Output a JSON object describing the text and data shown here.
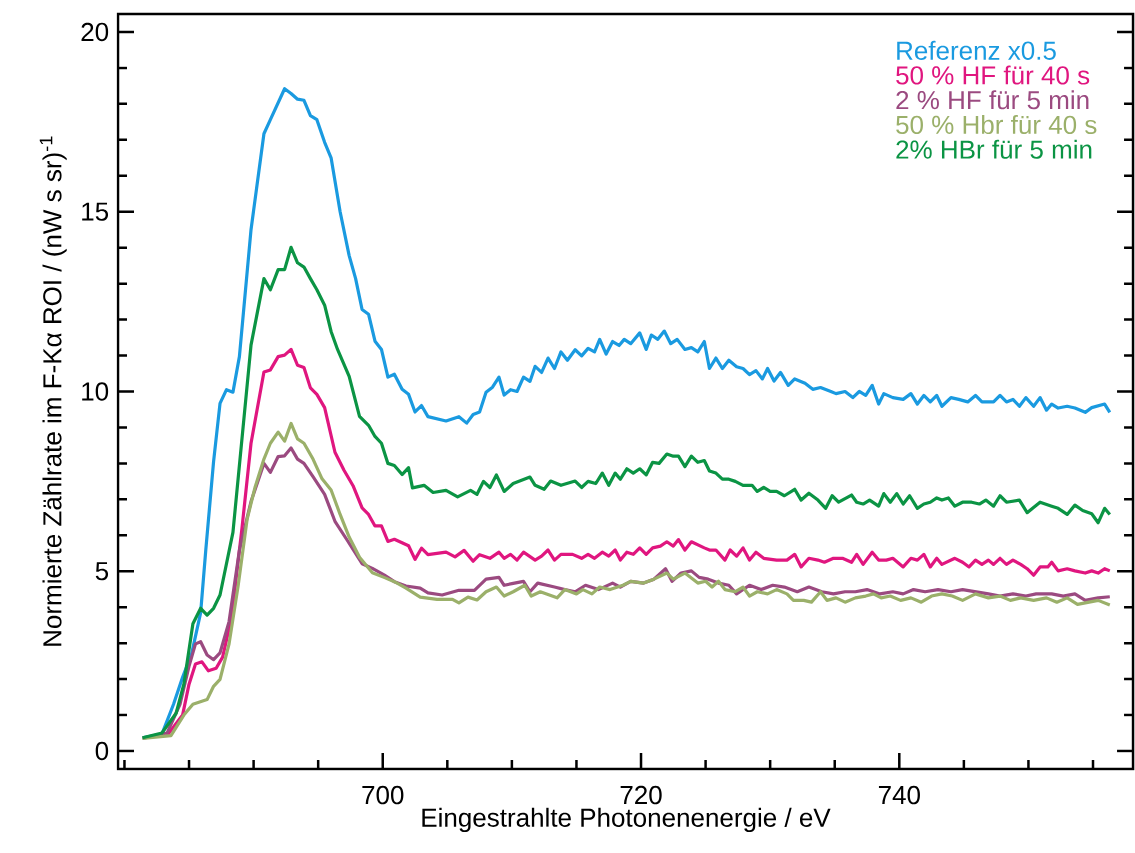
{
  "chart_data": {
    "type": "line",
    "xlabel": "Eingestrahlte Photonenenergie / eV",
    "ylabel": "Normierte Zählrate im F-Kα ROI / (nW s sr)$^{-1}$",
    "xlim": [
      679.5,
      758.1
    ],
    "ylim": [
      -0.5,
      20.5
    ],
    "xticks": [
      {
        "value": 680,
        "label": null
      },
      {
        "value": 685,
        "label": null
      },
      {
        "value": 690,
        "label": null
      },
      {
        "value": 695,
        "label": null
      },
      700,
      {
        "value": 705,
        "label": null
      },
      {
        "value": 710,
        "label": null
      },
      {
        "value": 715,
        "label": null
      },
      720,
      {
        "value": 725,
        "label": null
      },
      {
        "value": 730,
        "label": null
      },
      {
        "value": 735,
        "label": null
      },
      740,
      {
        "value": 745,
        "label": null
      },
      {
        "value": 750,
        "label": null
      },
      {
        "value": 755,
        "label": null
      }
    ],
    "yticks": [
      0,
      {
        "value": 1,
        "label": null
      },
      {
        "value": 2,
        "label": null
      },
      {
        "value": 3,
        "label": null
      },
      {
        "value": 4,
        "label": null
      },
      5,
      {
        "value": 6,
        "label": null
      },
      {
        "value": 7,
        "label": null
      },
      {
        "value": 8,
        "label": null
      },
      {
        "value": 9,
        "label": null
      },
      10,
      {
        "value": 11,
        "label": null
      },
      {
        "value": 12,
        "label": null
      },
      {
        "value": 13,
        "label": null
      },
      {
        "value": 14,
        "label": null
      },
      15,
      {
        "value": 16,
        "label": null
      },
      {
        "value": 17,
        "label": null
      },
      {
        "value": 18,
        "label": null
      },
      {
        "value": 19,
        "label": null
      },
      20
    ],
    "legend": "top right",
    "series": [
      {
        "name": "Referenz  x0.5",
        "color": "#1a9ae0",
        "x": [
          681.4,
          682.9,
          683.8,
          684.5,
          685.2,
          685.9,
          686.3,
          686.9,
          687.4,
          687.9,
          688.4,
          688.9,
          689.8,
          690.8,
          691.3,
          692.4,
          692.9,
          693.4,
          693.9,
          694.4,
          694.9,
          695.5,
          696.0,
          696.7,
          697.4,
          697.9,
          698.4,
          698.9,
          699.4,
          699.9,
          700.4,
          700.9,
          701.5,
          702.0,
          702.5,
          703.0,
          703.5,
          704.9,
          705.9,
          706.5,
          707.0,
          707.5,
          708.0,
          708.5,
          709.0,
          709.4,
          709.9,
          710.4,
          710.9,
          711.4,
          711.8,
          712.3,
          712.8,
          713.3,
          713.8,
          714.3,
          714.9,
          715.4,
          715.9,
          716.4,
          716.8,
          717.3,
          717.8,
          718.3,
          718.7,
          719.2,
          719.9,
          720.4,
          720.8,
          721.3,
          721.8,
          722.3,
          722.8,
          723.4,
          723.9,
          724.4,
          724.9,
          725.3,
          725.8,
          726.3,
          726.8,
          727.4,
          727.9,
          728.4,
          728.9,
          729.4,
          729.8,
          730.3,
          730.8,
          731.4,
          731.9,
          732.7,
          733.3,
          733.9,
          734.7,
          735.1,
          735.8,
          736.4,
          736.9,
          737.4,
          737.9,
          738.4,
          738.8,
          739.5,
          740.3,
          740.9,
          741.4,
          741.9,
          742.4,
          742.9,
          743.3,
          744.0,
          744.6,
          745.3,
          745.9,
          746.4,
          747.3,
          747.8,
          748.3,
          748.8,
          749.3,
          749.8,
          750.4,
          750.9,
          751.4,
          751.8,
          752.3,
          753.0,
          753.6,
          754.4,
          754.9,
          755.9,
          756.3
        ],
        "values": [
          0.37,
          0.47,
          1.3,
          2.05,
          2.7,
          3.85,
          5.6,
          8.05,
          9.67,
          10.05,
          9.98,
          10.97,
          14.5,
          17.17,
          17.56,
          18.42,
          18.29,
          18.13,
          18.1,
          17.67,
          17.56,
          16.93,
          16.5,
          15.0,
          13.78,
          13.14,
          12.28,
          12.15,
          11.4,
          11.17,
          10.4,
          10.48,
          10.06,
          9.92,
          9.43,
          9.61,
          9.3,
          9.18,
          9.3,
          9.12,
          9.36,
          9.43,
          9.98,
          10.12,
          10.4,
          9.9,
          10.05,
          10.0,
          10.4,
          10.28,
          10.7,
          10.53,
          10.93,
          10.64,
          11.1,
          10.87,
          11.16,
          10.99,
          11.2,
          11.1,
          11.45,
          11.04,
          11.39,
          11.28,
          11.45,
          11.33,
          11.63,
          11.17,
          11.57,
          11.45,
          11.68,
          11.33,
          11.45,
          11.17,
          11.22,
          11.1,
          11.39,
          10.64,
          10.93,
          10.64,
          10.87,
          10.69,
          10.64,
          10.47,
          10.58,
          10.35,
          10.64,
          10.29,
          10.53,
          10.17,
          10.35,
          10.23,
          10.06,
          10.11,
          10.0,
          9.94,
          10.0,
          9.83,
          10.0,
          9.89,
          10.17,
          9.65,
          9.94,
          9.83,
          9.78,
          9.94,
          9.65,
          9.89,
          9.71,
          9.89,
          9.59,
          9.83,
          9.78,
          9.71,
          9.89,
          9.71,
          9.71,
          9.89,
          9.71,
          9.78,
          9.59,
          9.83,
          9.59,
          9.83,
          9.48,
          9.65,
          9.54,
          9.59,
          9.54,
          9.42,
          9.55,
          9.65,
          9.42
        ]
      },
      {
        "name": "50 % HF für 40 s",
        "color": "#e0167f",
        "x": [
          683.3,
          684.5,
          685.0,
          685.5,
          686.0,
          686.5,
          687.1,
          687.6,
          688.3,
          689.1,
          689.8,
          690.8,
          691.3,
          691.9,
          692.4,
          692.9,
          693.4,
          693.9,
          694.4,
          694.9,
          695.5,
          696.3,
          697.0,
          697.7,
          698.4,
          698.9,
          699.4,
          699.9,
          700.4,
          700.9,
          702.0,
          702.5,
          703.0,
          703.5,
          704.9,
          705.6,
          706.3,
          707.0,
          707.5,
          708.3,
          709.0,
          709.4,
          709.9,
          710.4,
          710.9,
          711.8,
          712.3,
          712.8,
          713.3,
          713.8,
          714.7,
          715.4,
          715.9,
          716.4,
          717.0,
          717.5,
          718.0,
          718.4,
          718.9,
          719.4,
          719.9,
          720.4,
          720.9,
          721.5,
          722.0,
          722.5,
          722.9,
          723.4,
          723.9,
          724.9,
          725.3,
          725.8,
          726.5,
          726.9,
          727.4,
          727.9,
          728.4,
          728.9,
          729.5,
          730.5,
          731.3,
          731.9,
          732.4,
          733.0,
          733.7,
          734.2,
          734.9,
          735.6,
          736.3,
          736.7,
          737.2,
          737.9,
          738.4,
          739.0,
          739.5,
          740.3,
          740.9,
          741.4,
          741.9,
          742.4,
          742.9,
          743.3,
          744.3,
          744.9,
          745.4,
          745.9,
          746.4,
          746.9,
          747.3,
          747.8,
          748.3,
          748.8,
          749.4,
          749.9,
          750.4,
          750.9,
          751.5,
          751.8,
          752.3,
          753.0,
          753.6,
          754.4,
          754.9,
          755.4,
          755.9,
          756.3
        ],
        "values": [
          0.43,
          1.0,
          1.86,
          2.42,
          2.48,
          2.23,
          2.3,
          2.61,
          3.72,
          6.2,
          8.56,
          10.54,
          10.6,
          10.97,
          11.01,
          11.17,
          10.73,
          10.67,
          10.1,
          9.92,
          9.55,
          8.31,
          7.81,
          7.38,
          6.76,
          6.58,
          6.26,
          6.26,
          5.83,
          5.89,
          5.71,
          5.33,
          5.64,
          5.46,
          5.53,
          5.4,
          5.58,
          5.28,
          5.46,
          5.36,
          5.53,
          5.36,
          5.47,
          5.31,
          5.53,
          5.31,
          5.42,
          5.59,
          5.31,
          5.47,
          5.47,
          5.36,
          5.47,
          5.36,
          5.53,
          5.42,
          5.59,
          5.31,
          5.53,
          5.47,
          5.65,
          5.47,
          5.65,
          5.7,
          5.82,
          5.7,
          5.88,
          5.59,
          5.82,
          5.65,
          5.59,
          5.59,
          5.31,
          5.59,
          5.42,
          5.65,
          5.31,
          5.53,
          5.36,
          5.31,
          5.31,
          5.47,
          5.12,
          5.36,
          5.31,
          5.25,
          5.36,
          5.36,
          5.25,
          5.47,
          5.19,
          5.53,
          5.31,
          5.31,
          5.36,
          5.12,
          5.36,
          5.31,
          5.47,
          5.12,
          5.36,
          5.19,
          5.36,
          5.25,
          5.12,
          5.31,
          5.19,
          5.31,
          5.19,
          5.36,
          5.19,
          5.31,
          5.19,
          5.07,
          4.89,
          5.12,
          5.12,
          5.25,
          5.01,
          5.07,
          5.01,
          4.95,
          5.01,
          4.95,
          5.07,
          5.01
        ]
      },
      {
        "name": "2 % HF für 5 min",
        "color": "#9b4a80",
        "x": [
          681.4,
          683.3,
          684.3,
          685.0,
          685.5,
          685.9,
          686.4,
          686.9,
          687.4,
          688.1,
          688.9,
          689.8,
          690.8,
          691.3,
          691.9,
          692.4,
          692.9,
          693.4,
          693.9,
          694.6,
          695.5,
          696.3,
          697.2,
          698.4,
          699.2,
          700.1,
          700.9,
          701.8,
          702.9,
          703.5,
          704.6,
          705.9,
          707.1,
          708.0,
          709.0,
          709.4,
          710.2,
          710.9,
          711.4,
          712.0,
          713.3,
          714.1,
          714.9,
          715.7,
          716.7,
          717.8,
          718.4,
          719.2,
          720.2,
          721.0,
          721.9,
          722.4,
          723.1,
          723.9,
          724.5,
          725.2,
          726.0,
          726.8,
          727.4,
          728.4,
          729.3,
          730.2,
          731.1,
          732.1,
          733.0,
          734.0,
          734.9,
          735.8,
          736.6,
          737.5,
          738.5,
          739.5,
          740.3,
          741.1,
          742.0,
          743.0,
          744.0,
          744.9,
          745.9,
          746.9,
          747.8,
          748.8,
          749.8,
          750.6,
          751.8,
          752.7,
          753.6,
          754.4,
          755.4,
          756.3
        ],
        "values": [
          0.35,
          0.5,
          1.3,
          2.36,
          2.98,
          3.04,
          2.67,
          2.54,
          2.73,
          3.6,
          5.58,
          6.94,
          8.0,
          7.75,
          8.19,
          8.21,
          8.43,
          8.12,
          8.0,
          7.63,
          7.14,
          6.39,
          5.89,
          5.21,
          5.08,
          4.9,
          4.71,
          4.59,
          4.53,
          4.4,
          4.34,
          4.47,
          4.47,
          4.78,
          4.83,
          4.61,
          4.67,
          4.72,
          4.43,
          4.67,
          4.56,
          4.49,
          4.43,
          4.61,
          4.49,
          4.67,
          4.56,
          4.72,
          4.67,
          4.78,
          5.07,
          4.72,
          4.95,
          5.01,
          4.83,
          4.78,
          4.67,
          4.61,
          4.37,
          4.61,
          4.49,
          4.61,
          4.56,
          4.43,
          4.56,
          4.43,
          4.37,
          4.43,
          4.43,
          4.49,
          4.37,
          4.43,
          4.37,
          4.49,
          4.43,
          4.49,
          4.43,
          4.49,
          4.43,
          4.37,
          4.31,
          4.37,
          4.31,
          4.37,
          4.37,
          4.31,
          4.37,
          4.19,
          4.26,
          4.29
        ]
      },
      {
        "name": "50 % Hbr für 40 s",
        "color": "#9bb06a",
        "x": [
          681.4,
          683.6,
          684.6,
          685.3,
          686.4,
          686.9,
          687.4,
          688.1,
          688.8,
          689.5,
          690.1,
          690.8,
          691.3,
          691.9,
          692.4,
          692.9,
          693.4,
          693.9,
          694.6,
          695.3,
          696.0,
          696.7,
          697.4,
          698.2,
          699.2,
          700.1,
          700.9,
          701.8,
          702.9,
          704.2,
          705.4,
          705.9,
          706.6,
          707.3,
          708.0,
          708.8,
          709.4,
          710.1,
          711.0,
          711.5,
          712.2,
          713.5,
          714.1,
          715.0,
          715.5,
          716.2,
          716.8,
          717.6,
          718.6,
          719.2,
          720.2,
          721.0,
          722.0,
          722.5,
          723.4,
          724.4,
          725.0,
          725.5,
          726.0,
          726.5,
          727.3,
          727.9,
          728.4,
          729.0,
          729.8,
          730.5,
          731.3,
          731.8,
          732.6,
          733.2,
          733.9,
          734.4,
          735.1,
          735.8,
          736.6,
          737.4,
          738.0,
          738.6,
          739.3,
          740.1,
          740.9,
          741.7,
          742.5,
          743.3,
          744.1,
          744.9,
          745.9,
          746.9,
          747.8,
          748.6,
          749.4,
          750.4,
          751.4,
          752.2,
          753.0,
          753.8,
          755.4,
          756.3
        ],
        "values": [
          0.35,
          0.43,
          1.0,
          1.3,
          1.43,
          1.8,
          1.99,
          2.98,
          4.59,
          6.45,
          7.32,
          8.12,
          8.56,
          8.87,
          8.62,
          9.11,
          8.68,
          8.56,
          8.12,
          7.57,
          7.26,
          6.58,
          5.95,
          5.39,
          4.96,
          4.83,
          4.71,
          4.53,
          4.28,
          4.22,
          4.22,
          4.12,
          4.28,
          4.2,
          4.43,
          4.56,
          4.31,
          4.43,
          4.61,
          4.31,
          4.43,
          4.26,
          4.49,
          4.37,
          4.49,
          4.37,
          4.56,
          4.49,
          4.61,
          4.72,
          4.67,
          4.78,
          4.95,
          4.78,
          4.95,
          4.67,
          4.72,
          4.56,
          4.72,
          4.49,
          4.43,
          4.56,
          4.31,
          4.43,
          4.37,
          4.49,
          4.37,
          4.19,
          4.19,
          4.14,
          4.43,
          4.19,
          4.26,
          4.14,
          4.26,
          4.31,
          4.37,
          4.26,
          4.31,
          4.19,
          4.26,
          4.14,
          4.31,
          4.37,
          4.31,
          4.19,
          4.37,
          4.26,
          4.31,
          4.19,
          4.26,
          4.19,
          4.26,
          4.14,
          4.26,
          4.08,
          4.19,
          4.06
        ]
      },
      {
        "name": "2% HBr für 5 min",
        "color": "#0b9444",
        "x": [
          681.4,
          682.9,
          684.0,
          684.6,
          685.3,
          685.9,
          686.4,
          686.9,
          687.4,
          688.4,
          689.8,
          690.8,
          691.3,
          691.9,
          692.4,
          692.9,
          693.4,
          693.9,
          694.4,
          694.9,
          695.5,
          696.0,
          696.5,
          697.4,
          698.2,
          698.9,
          699.4,
          699.9,
          700.4,
          700.9,
          701.5,
          702.0,
          702.3,
          703.2,
          703.9,
          704.9,
          705.8,
          706.8,
          707.3,
          707.8,
          708.3,
          708.8,
          709.4,
          710.1,
          711.4,
          711.8,
          712.5,
          713.0,
          713.8,
          714.9,
          715.4,
          715.9,
          716.5,
          717.0,
          717.5,
          718.0,
          718.4,
          718.9,
          719.4,
          719.9,
          720.4,
          720.9,
          721.4,
          722.0,
          722.5,
          722.9,
          723.4,
          723.9,
          724.4,
          724.9,
          725.3,
          725.8,
          726.3,
          726.8,
          727.3,
          727.9,
          728.6,
          729.0,
          729.5,
          730.0,
          730.5,
          731.1,
          731.9,
          732.4,
          733.0,
          733.7,
          734.3,
          734.8,
          735.3,
          736.3,
          736.7,
          737.2,
          737.7,
          738.4,
          738.8,
          739.3,
          739.8,
          740.3,
          740.8,
          741.4,
          741.9,
          742.4,
          742.9,
          743.3,
          743.8,
          744.3,
          744.9,
          745.6,
          746.2,
          746.7,
          747.3,
          747.8,
          748.3,
          749.3,
          749.9,
          750.9,
          751.8,
          752.3,
          753.0,
          753.6,
          754.2,
          754.9,
          755.4,
          755.9,
          756.3
        ],
        "values": [
          0.37,
          0.5,
          1.05,
          1.86,
          3.54,
          3.97,
          3.78,
          3.97,
          4.34,
          6.08,
          11.29,
          13.14,
          12.83,
          13.39,
          13.39,
          14.01,
          13.58,
          13.46,
          13.14,
          12.83,
          12.4,
          11.67,
          11.17,
          10.42,
          9.31,
          9.06,
          8.75,
          8.56,
          8.0,
          7.94,
          7.69,
          7.88,
          7.32,
          7.39,
          7.19,
          7.25,
          7.07,
          7.25,
          7.14,
          7.5,
          7.33,
          7.68,
          7.22,
          7.44,
          7.62,
          7.39,
          7.28,
          7.51,
          7.39,
          7.51,
          7.33,
          7.5,
          7.44,
          7.73,
          7.39,
          7.73,
          7.56,
          7.85,
          7.73,
          7.85,
          7.68,
          8.03,
          8.0,
          8.26,
          8.2,
          8.2,
          7.91,
          8.2,
          8.03,
          8.08,
          7.79,
          7.73,
          7.56,
          7.56,
          7.5,
          7.39,
          7.39,
          7.22,
          7.33,
          7.22,
          7.22,
          7.1,
          7.28,
          6.98,
          7.17,
          6.98,
          6.75,
          7.1,
          6.92,
          7.12,
          6.92,
          6.87,
          6.98,
          6.81,
          7.16,
          6.92,
          7.16,
          6.87,
          7.1,
          6.75,
          6.87,
          6.92,
          7.04,
          6.98,
          7.04,
          6.81,
          6.92,
          6.92,
          6.87,
          6.98,
          6.81,
          7.1,
          6.92,
          6.98,
          6.63,
          6.92,
          6.81,
          6.75,
          6.58,
          6.84,
          6.69,
          6.6,
          6.35,
          6.75,
          6.58
        ]
      }
    ]
  }
}
